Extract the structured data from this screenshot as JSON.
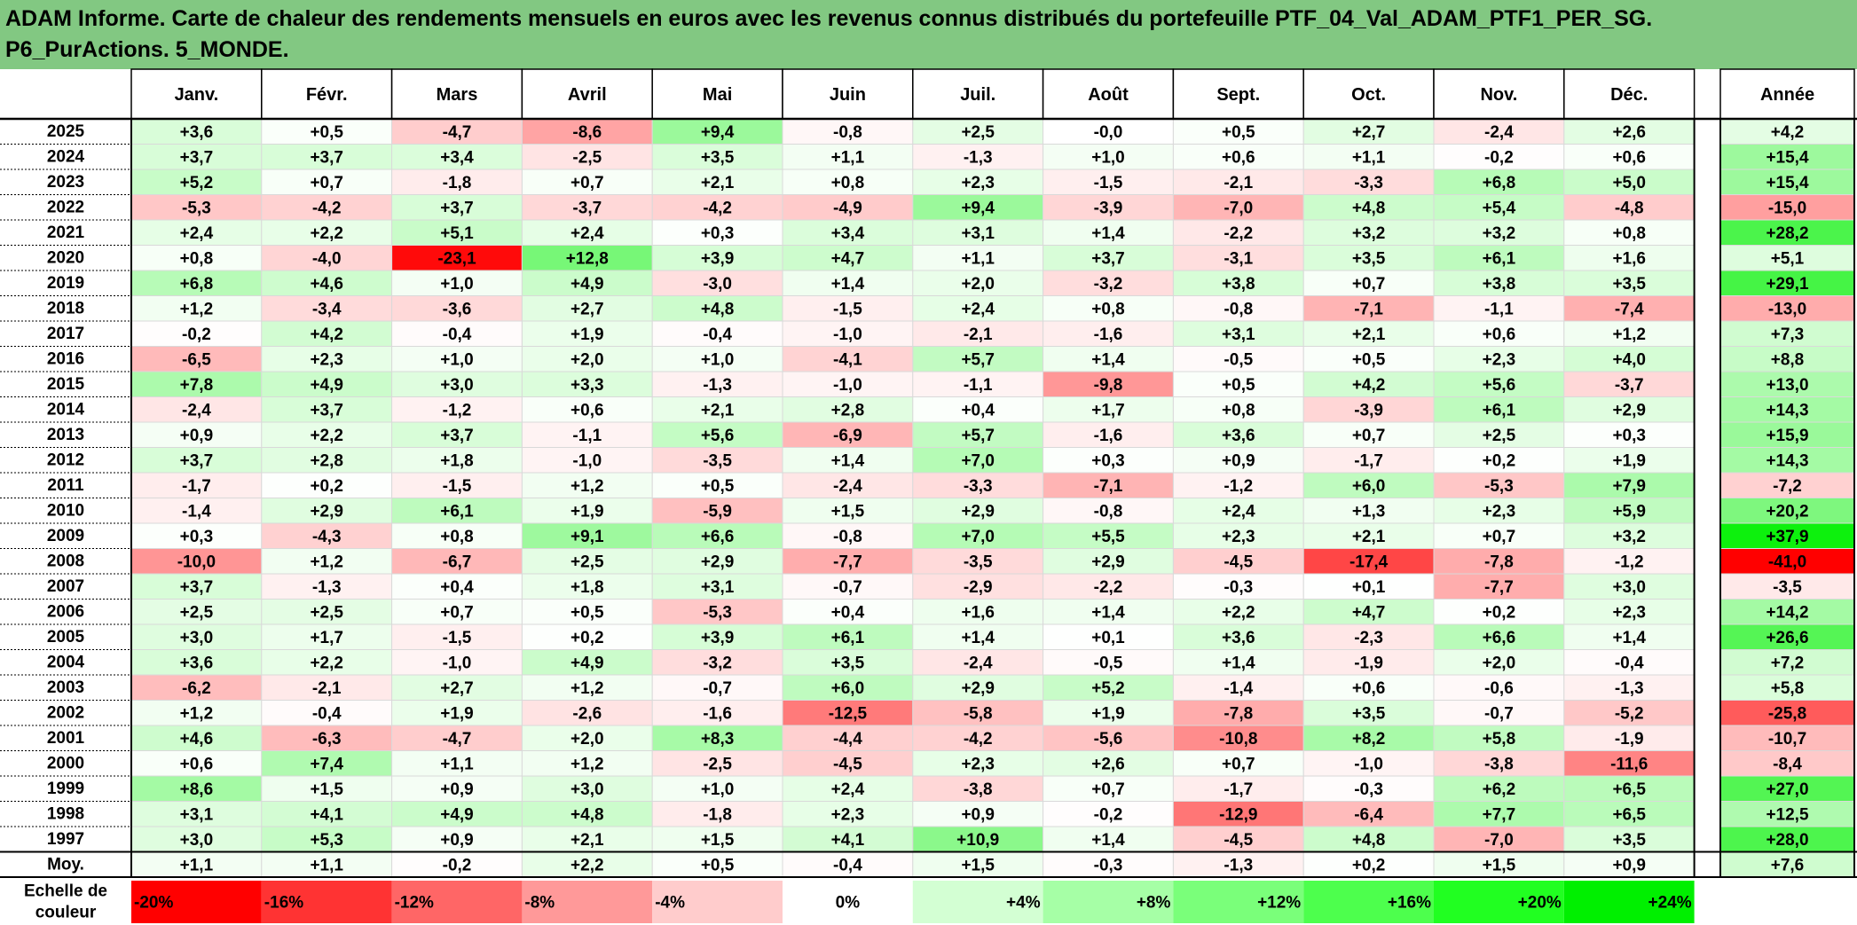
{
  "title_lines": [
    "ADAM Informe. Carte de chaleur des rendements mensuels en euros avec les revenus connus distribués du portefeuille PTF_04_Val_ADAM_PTF1_PER_SG.",
    "P6_PurActions. 5_MONDE."
  ],
  "chart_data": {
    "type": "heatmap",
    "months": [
      "Janv.",
      "Févr.",
      "Mars",
      "Avril",
      "Mai",
      "Juin",
      "Juil.",
      "Août",
      "Sept.",
      "Oct.",
      "Nov.",
      "Déc."
    ],
    "year_header": "Année",
    "rows": [
      {
        "year": "2025",
        "values": [
          "+3,6",
          "+0,5",
          "-4,7",
          "-8,6",
          "+9,4",
          "-0,8",
          "+2,5",
          "-0,0",
          "+0,5",
          "+2,7",
          "-2,4",
          "+2,6"
        ],
        "annual": "+4,2"
      },
      {
        "year": "2024",
        "values": [
          "+3,7",
          "+3,7",
          "+3,4",
          "-2,5",
          "+3,5",
          "+1,1",
          "-1,3",
          "+1,0",
          "+0,6",
          "+1,1",
          "-0,2",
          "+0,6"
        ],
        "annual": "+15,4"
      },
      {
        "year": "2023",
        "values": [
          "+5,2",
          "+0,7",
          "-1,8",
          "+0,7",
          "+2,1",
          "+0,8",
          "+2,3",
          "-1,5",
          "-2,1",
          "-3,3",
          "+6,8",
          "+5,0"
        ],
        "annual": "+15,4"
      },
      {
        "year": "2022",
        "values": [
          "-5,3",
          "-4,2",
          "+3,7",
          "-3,7",
          "-4,2",
          "-4,9",
          "+9,4",
          "-3,9",
          "-7,0",
          "+4,8",
          "+5,4",
          "-4,8"
        ],
        "annual": "-15,0"
      },
      {
        "year": "2021",
        "values": [
          "+2,4",
          "+2,2",
          "+5,1",
          "+2,4",
          "+0,3",
          "+3,4",
          "+3,1",
          "+1,4",
          "-2,2",
          "+3,2",
          "+3,2",
          "+0,8"
        ],
        "annual": "+28,2"
      },
      {
        "year": "2020",
        "values": [
          "+0,8",
          "-4,0",
          "-23,1",
          "+12,8",
          "+3,9",
          "+4,7",
          "+1,1",
          "+3,7",
          "-3,1",
          "+3,5",
          "+6,1",
          "+1,6"
        ],
        "annual": "+5,1"
      },
      {
        "year": "2019",
        "values": [
          "+6,8",
          "+4,6",
          "+1,0",
          "+4,9",
          "-3,0",
          "+1,4",
          "+2,0",
          "-3,2",
          "+3,8",
          "+0,7",
          "+3,8",
          "+3,5"
        ],
        "annual": "+29,1"
      },
      {
        "year": "2018",
        "values": [
          "+1,2",
          "-3,4",
          "-3,6",
          "+2,7",
          "+4,8",
          "-1,5",
          "+2,4",
          "+0,8",
          "-0,8",
          "-7,1",
          "-1,1",
          "-7,4"
        ],
        "annual": "-13,0"
      },
      {
        "year": "2017",
        "values": [
          "-0,2",
          "+4,2",
          "-0,4",
          "+1,9",
          "-0,4",
          "-1,0",
          "-2,1",
          "-1,6",
          "+3,1",
          "+2,1",
          "+0,6",
          "+1,2"
        ],
        "annual": "+7,3"
      },
      {
        "year": "2016",
        "values": [
          "-6,5",
          "+2,3",
          "+1,0",
          "+2,0",
          "+1,0",
          "-4,1",
          "+5,7",
          "+1,4",
          "-0,5",
          "+0,5",
          "+2,3",
          "+4,0"
        ],
        "annual": "+8,8"
      },
      {
        "year": "2015",
        "values": [
          "+7,8",
          "+4,9",
          "+3,0",
          "+3,3",
          "-1,3",
          "-1,0",
          "-1,1",
          "-9,8",
          "+0,5",
          "+4,2",
          "+5,6",
          "-3,7"
        ],
        "annual": "+13,0"
      },
      {
        "year": "2014",
        "values": [
          "-2,4",
          "+3,7",
          "-1,2",
          "+0,6",
          "+2,1",
          "+2,8",
          "+0,4",
          "+1,7",
          "+0,8",
          "-3,9",
          "+6,1",
          "+2,9"
        ],
        "annual": "+14,3"
      },
      {
        "year": "2013",
        "values": [
          "+0,9",
          "+2,2",
          "+3,7",
          "-1,1",
          "+5,6",
          "-6,9",
          "+5,7",
          "-1,6",
          "+3,6",
          "+0,7",
          "+2,5",
          "+0,3"
        ],
        "annual": "+15,9"
      },
      {
        "year": "2012",
        "values": [
          "+3,7",
          "+2,8",
          "+1,8",
          "-1,0",
          "-3,5",
          "+1,4",
          "+7,0",
          "+0,3",
          "+0,9",
          "-1,7",
          "+0,2",
          "+1,9"
        ],
        "annual": "+14,3"
      },
      {
        "year": "2011",
        "values": [
          "-1,7",
          "+0,2",
          "-1,5",
          "+1,2",
          "+0,5",
          "-2,4",
          "-3,3",
          "-7,1",
          "-1,2",
          "+6,0",
          "-5,3",
          "+7,9"
        ],
        "annual": "-7,2"
      },
      {
        "year": "2010",
        "values": [
          "-1,4",
          "+2,9",
          "+6,1",
          "+1,9",
          "-5,9",
          "+1,5",
          "+2,9",
          "-0,8",
          "+2,4",
          "+1,3",
          "+2,3",
          "+5,9"
        ],
        "annual": "+20,2"
      },
      {
        "year": "2009",
        "values": [
          "+0,3",
          "-4,3",
          "+0,8",
          "+9,1",
          "+6,6",
          "-0,8",
          "+7,0",
          "+5,5",
          "+2,3",
          "+2,1",
          "+0,7",
          "+3,2"
        ],
        "annual": "+37,9"
      },
      {
        "year": "2008",
        "values": [
          "-10,0",
          "+1,2",
          "-6,7",
          "+2,5",
          "+2,9",
          "-7,7",
          "-3,5",
          "+2,9",
          "-4,5",
          "-17,4",
          "-7,8",
          "-1,2"
        ],
        "annual": "-41,0"
      },
      {
        "year": "2007",
        "values": [
          "+3,7",
          "-1,3",
          "+0,4",
          "+1,8",
          "+3,1",
          "-0,7",
          "-2,9",
          "-2,2",
          "-0,3",
          "+0,1",
          "-7,7",
          "+3,0"
        ],
        "annual": "-3,5"
      },
      {
        "year": "2006",
        "values": [
          "+2,5",
          "+2,5",
          "+0,7",
          "+0,5",
          "-5,3",
          "+0,4",
          "+1,6",
          "+1,4",
          "+2,2",
          "+4,7",
          "+0,2",
          "+2,3"
        ],
        "annual": "+14,2"
      },
      {
        "year": "2005",
        "values": [
          "+3,0",
          "+1,7",
          "-1,5",
          "+0,2",
          "+3,9",
          "+6,1",
          "+1,4",
          "+0,1",
          "+3,6",
          "-2,3",
          "+6,6",
          "+1,4"
        ],
        "annual": "+26,6"
      },
      {
        "year": "2004",
        "values": [
          "+3,6",
          "+2,2",
          "-1,0",
          "+4,9",
          "-3,2",
          "+3,5",
          "-2,4",
          "-0,5",
          "+1,4",
          "-1,9",
          "+2,0",
          "-0,4"
        ],
        "annual": "+7,2"
      },
      {
        "year": "2003",
        "values": [
          "-6,2",
          "-2,1",
          "+2,7",
          "+1,2",
          "-0,7",
          "+6,0",
          "+2,9",
          "+5,2",
          "-1,4",
          "+0,6",
          "-0,6",
          "-1,3"
        ],
        "annual": "+5,8"
      },
      {
        "year": "2002",
        "values": [
          "+1,2",
          "-0,4",
          "+1,9",
          "-2,6",
          "-1,6",
          "-12,5",
          "-5,8",
          "+1,9",
          "-7,8",
          "+3,5",
          "-0,7",
          "-5,2"
        ],
        "annual": "-25,8"
      },
      {
        "year": "2001",
        "values": [
          "+4,6",
          "-6,3",
          "-4,7",
          "+2,0",
          "+8,3",
          "-4,4",
          "-4,2",
          "-5,6",
          "-10,8",
          "+8,2",
          "+5,8",
          "-1,9"
        ],
        "annual": "-10,7"
      },
      {
        "year": "2000",
        "values": [
          "+0,6",
          "+7,4",
          "+1,1",
          "+1,2",
          "-2,5",
          "-4,5",
          "+2,3",
          "+2,6",
          "+0,7",
          "-1,0",
          "-3,8",
          "-11,6"
        ],
        "annual": "-8,4"
      },
      {
        "year": "1999",
        "values": [
          "+8,6",
          "+1,5",
          "+0,9",
          "+3,0",
          "+1,0",
          "+2,4",
          "-3,8",
          "+0,7",
          "-1,7",
          "-0,3",
          "+6,2",
          "+6,5"
        ],
        "annual": "+27,0"
      },
      {
        "year": "1998",
        "values": [
          "+3,1",
          "+4,1",
          "+4,9",
          "+4,8",
          "-1,8",
          "+2,3",
          "+0,9",
          "-0,2",
          "-12,9",
          "-6,4",
          "+7,7",
          "+6,5"
        ],
        "annual": "+12,5"
      },
      {
        "year": "1997",
        "values": [
          "+3,0",
          "+5,3",
          "+0,9",
          "+2,1",
          "+1,5",
          "+4,1",
          "+10,9",
          "+1,4",
          "-4,5",
          "+4,8",
          "-7,0",
          "+3,5"
        ],
        "annual": "+28,0"
      }
    ],
    "average": {
      "label": "Moy.",
      "values": [
        "+1,1",
        "+1,1",
        "-0,2",
        "+2,2",
        "+0,5",
        "-0,4",
        "+1,5",
        "-0,3",
        "-1,3",
        "+0,2",
        "+1,5",
        "+0,9"
      ],
      "annual": "+7,6"
    },
    "scale": {
      "label_lines": [
        "Echelle de",
        "couleur"
      ],
      "stops": [
        {
          "label": "-20%",
          "value": -20,
          "color": "#ff0000"
        },
        {
          "label": "-16%",
          "value": -16,
          "color": "#ff3333"
        },
        {
          "label": "-12%",
          "value": -12,
          "color": "#ff6666"
        },
        {
          "label": "-8%",
          "value": -8,
          "color": "#ff9999"
        },
        {
          "label": "-4%",
          "value": -4,
          "color": "#ffcccc"
        },
        {
          "label": "0%",
          "value": 0,
          "color": "#ffffff"
        },
        {
          "label": "+4%",
          "value": 4,
          "color": "#d3ffd3"
        },
        {
          "label": "+8%",
          "value": 8,
          "color": "#a6ffa6"
        },
        {
          "label": "+12%",
          "value": 12,
          "color": "#7aff7a"
        },
        {
          "label": "+16%",
          "value": 16,
          "color": "#4dff4d"
        },
        {
          "label": "+20%",
          "value": 20,
          "color": "#21ff21"
        },
        {
          "label": "+24%",
          "value": 24,
          "color": "#00f000"
        }
      ]
    },
    "colors": {
      "title_background": "#82c882",
      "negative_max": "#ff0000",
      "positive_max": "#00f000",
      "neutral": "#ffffff"
    }
  }
}
